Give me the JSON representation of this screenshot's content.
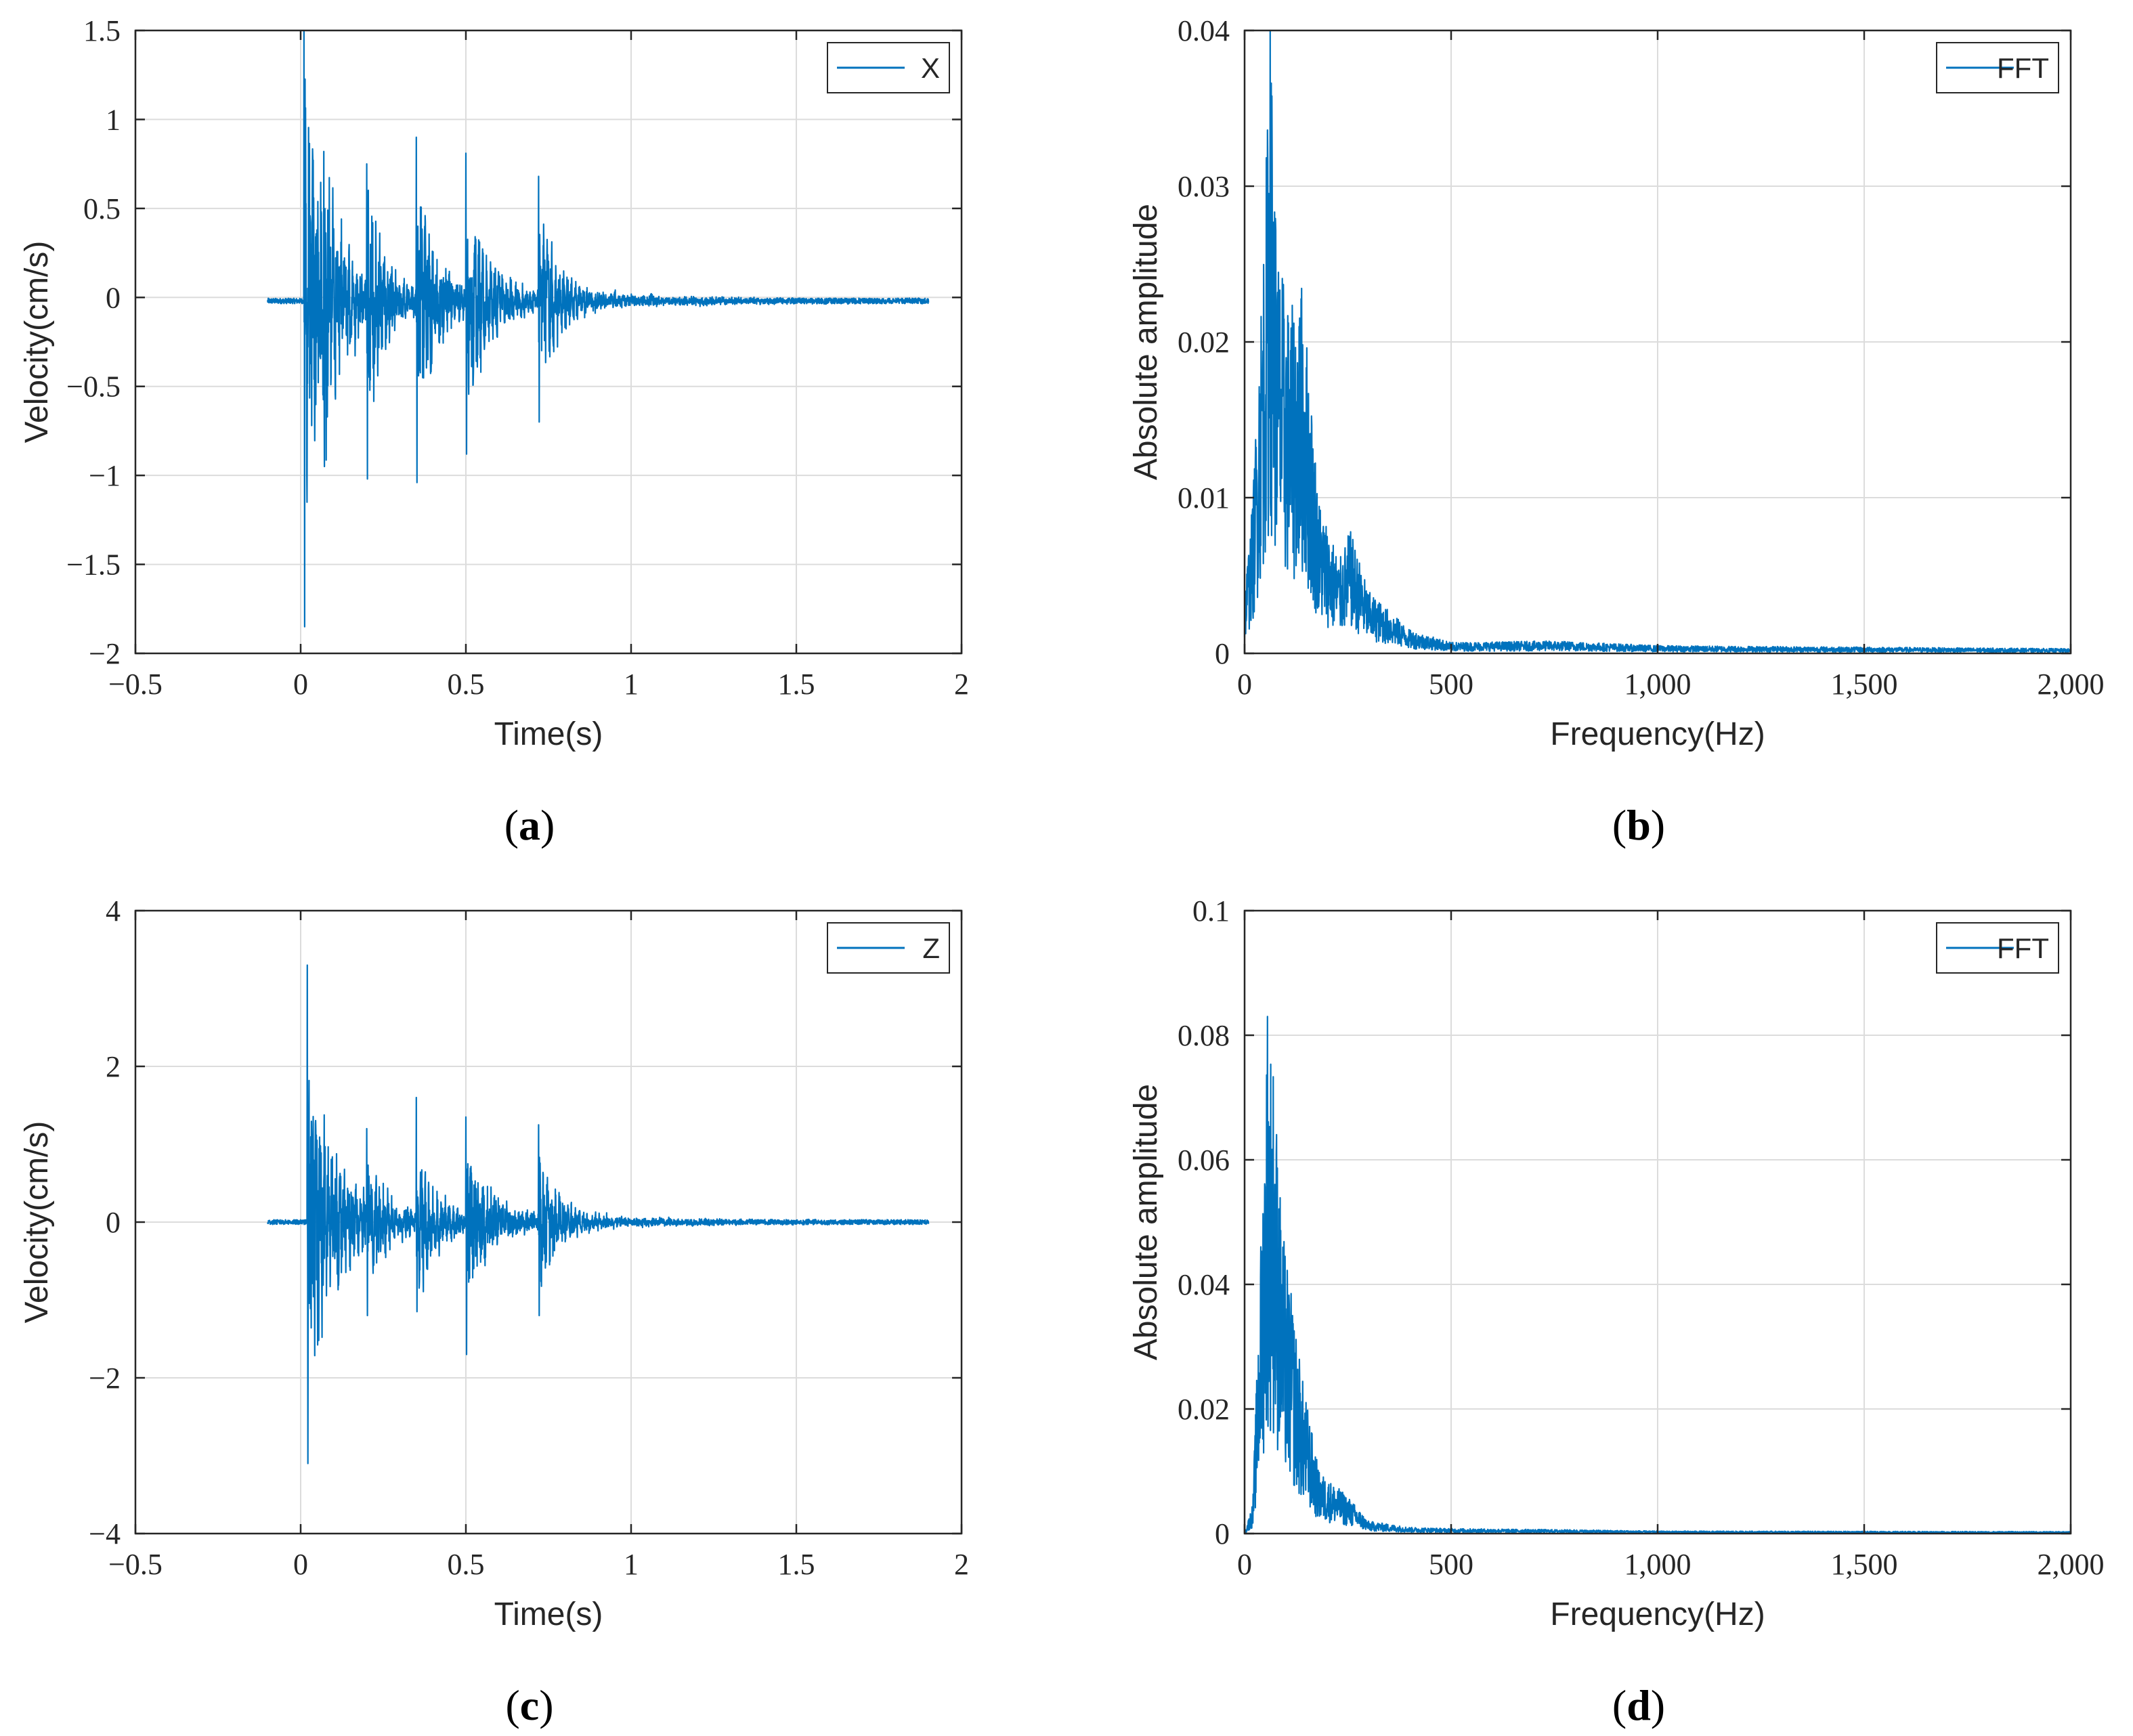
{
  "colors": {
    "series": "#0072BD",
    "grid": "#dcdcdc",
    "axis": "#262626"
  },
  "chart_data": [
    {
      "type": "line",
      "panel": "a",
      "caption_open": "(",
      "caption_letter": "a",
      "caption_close": ")",
      "xlabel": "Time(s)",
      "ylabel": "Velocity(cm/s)",
      "xlim": [
        -0.5,
        2
      ],
      "ylim": [
        -2,
        1.5
      ],
      "xticks": [
        -0.5,
        0,
        0.5,
        1,
        1.5,
        2
      ],
      "xtick_labels": [
        "−0.5",
        "0",
        "0.5",
        "1",
        "1.5",
        "2"
      ],
      "yticks": [
        -2,
        -1.5,
        -1,
        -0.5,
        0,
        0.5,
        1,
        1.5
      ],
      "ytick_labels": [
        "−2",
        "−1.5",
        "−1",
        "−0.5",
        "0",
        "0.5",
        "1",
        "1.5"
      ],
      "grid": true,
      "legend": [
        "X"
      ],
      "legend_position": "top-right",
      "series": [
        {
          "name": "X",
          "x_range": [
            -0.1,
            1.9
          ],
          "baseline": -0.02,
          "noise": 0.015,
          "bursts": [
            {
              "t": 0.01,
              "peak": 1.5,
              "trough": -1.85,
              "decay": 0.08
            },
            {
              "t": 0.07,
              "peak": 0.82,
              "trough": -0.95,
              "decay": 0.05
            },
            {
              "t": 0.2,
              "peak": 0.75,
              "trough": -1.02,
              "decay": 0.06
            },
            {
              "t": 0.35,
              "peak": 0.9,
              "trough": -1.04,
              "decay": 0.07
            },
            {
              "t": 0.5,
              "peak": 0.81,
              "trough": -0.88,
              "decay": 0.08
            },
            {
              "t": 0.72,
              "peak": 0.68,
              "trough": -0.7,
              "decay": 0.07
            }
          ]
        }
      ]
    },
    {
      "type": "line",
      "panel": "b",
      "caption_open": "(",
      "caption_letter": "b",
      "caption_close": ")",
      "xlabel": "Frequency(Hz)",
      "ylabel": "Absolute amplitude",
      "xlim": [
        0,
        2000
      ],
      "ylim": [
        0,
        0.04
      ],
      "xticks": [
        0,
        500,
        1000,
        1500,
        2000
      ],
      "xtick_labels": [
        "0",
        "500",
        "1,000",
        "1,500",
        "2,000"
      ],
      "yticks": [
        0,
        0.01,
        0.02,
        0.03,
        0.04
      ],
      "ytick_labels": [
        "0",
        "0.01",
        "0.02",
        "0.03",
        "0.04"
      ],
      "grid": true,
      "legend": [
        "FFT"
      ],
      "legend_position": "top-right",
      "series": [
        {
          "name": "FFT",
          "x_range": [
            0,
            2000
          ],
          "envelope": [
            [
              0,
              0.004
            ],
            [
              20,
              0.01
            ],
            [
              50,
              0.03
            ],
            [
              62,
              0.04
            ],
            [
              80,
              0.026
            ],
            [
              110,
              0.022
            ],
            [
              140,
              0.024
            ],
            [
              180,
              0.01
            ],
            [
              230,
              0.006
            ],
            [
              255,
              0.008
            ],
            [
              300,
              0.004
            ],
            [
              400,
              0.0015
            ],
            [
              500,
              0.0007
            ],
            [
              750,
              0.0008
            ],
            [
              1000,
              0.0005
            ],
            [
              1500,
              0.0004
            ],
            [
              2000,
              0.0003
            ]
          ]
        }
      ]
    },
    {
      "type": "line",
      "panel": "c",
      "caption_open": "(",
      "caption_letter": "c",
      "caption_close": ")",
      "xlabel": "Time(s)",
      "ylabel": "Velocity(cm/s)",
      "xlim": [
        -0.5,
        2
      ],
      "ylim": [
        -4,
        4
      ],
      "xticks": [
        -0.5,
        0,
        0.5,
        1,
        1.5,
        2
      ],
      "xtick_labels": [
        "−0.5",
        "0",
        "0.5",
        "1",
        "1.5",
        "2"
      ],
      "yticks": [
        -4,
        -2,
        0,
        2,
        4
      ],
      "ytick_labels": [
        "−4",
        "−2",
        "0",
        "2",
        "4"
      ],
      "grid": true,
      "legend": [
        "Z"
      ],
      "legend_position": "top-right",
      "series": [
        {
          "name": "Z",
          "x_range": [
            -0.1,
            1.9
          ],
          "baseline": 0.0,
          "noise": 0.03,
          "bursts": [
            {
              "t": 0.02,
              "peak": 3.3,
              "trough": -3.1,
              "decay": 0.09
            },
            {
              "t": 0.2,
              "peak": 1.2,
              "trough": -1.2,
              "decay": 0.06
            },
            {
              "t": 0.35,
              "peak": 1.6,
              "trough": -1.15,
              "decay": 0.07
            },
            {
              "t": 0.5,
              "peak": 1.35,
              "trough": -1.7,
              "decay": 0.08
            },
            {
              "t": 0.72,
              "peak": 1.25,
              "trough": -1.2,
              "decay": 0.07
            }
          ]
        }
      ]
    },
    {
      "type": "line",
      "panel": "d",
      "caption_open": "(",
      "caption_letter": "d",
      "caption_close": ")",
      "xlabel": "Frequency(Hz)",
      "ylabel": "Absolute amplitude",
      "xlim": [
        0,
        2000
      ],
      "ylim": [
        0,
        0.1
      ],
      "xticks": [
        0,
        500,
        1000,
        1500,
        2000
      ],
      "xtick_labels": [
        "0",
        "500",
        "1,000",
        "1,500",
        "2,000"
      ],
      "yticks": [
        0,
        0.02,
        0.04,
        0.06,
        0.08,
        0.1
      ],
      "ytick_labels": [
        "0",
        "0.02",
        "0.04",
        "0.06",
        "0.08",
        "0.1"
      ],
      "grid": true,
      "legend": [
        "FFT"
      ],
      "legend_position": "top-right",
      "series": [
        {
          "name": "FFT",
          "x_range": [
            0,
            2000
          ],
          "envelope": [
            [
              0,
              0.0
            ],
            [
              20,
              0.005
            ],
            [
              45,
              0.06
            ],
            [
              55,
              0.083
            ],
            [
              70,
              0.077
            ],
            [
              90,
              0.05
            ],
            [
              110,
              0.04
            ],
            [
              140,
              0.025
            ],
            [
              180,
              0.01
            ],
            [
              250,
              0.006
            ],
            [
              300,
              0.002
            ],
            [
              400,
              0.001
            ],
            [
              500,
              0.0008
            ],
            [
              800,
              0.0006
            ],
            [
              1000,
              0.0004
            ],
            [
              2000,
              0.0003
            ]
          ]
        }
      ]
    }
  ]
}
